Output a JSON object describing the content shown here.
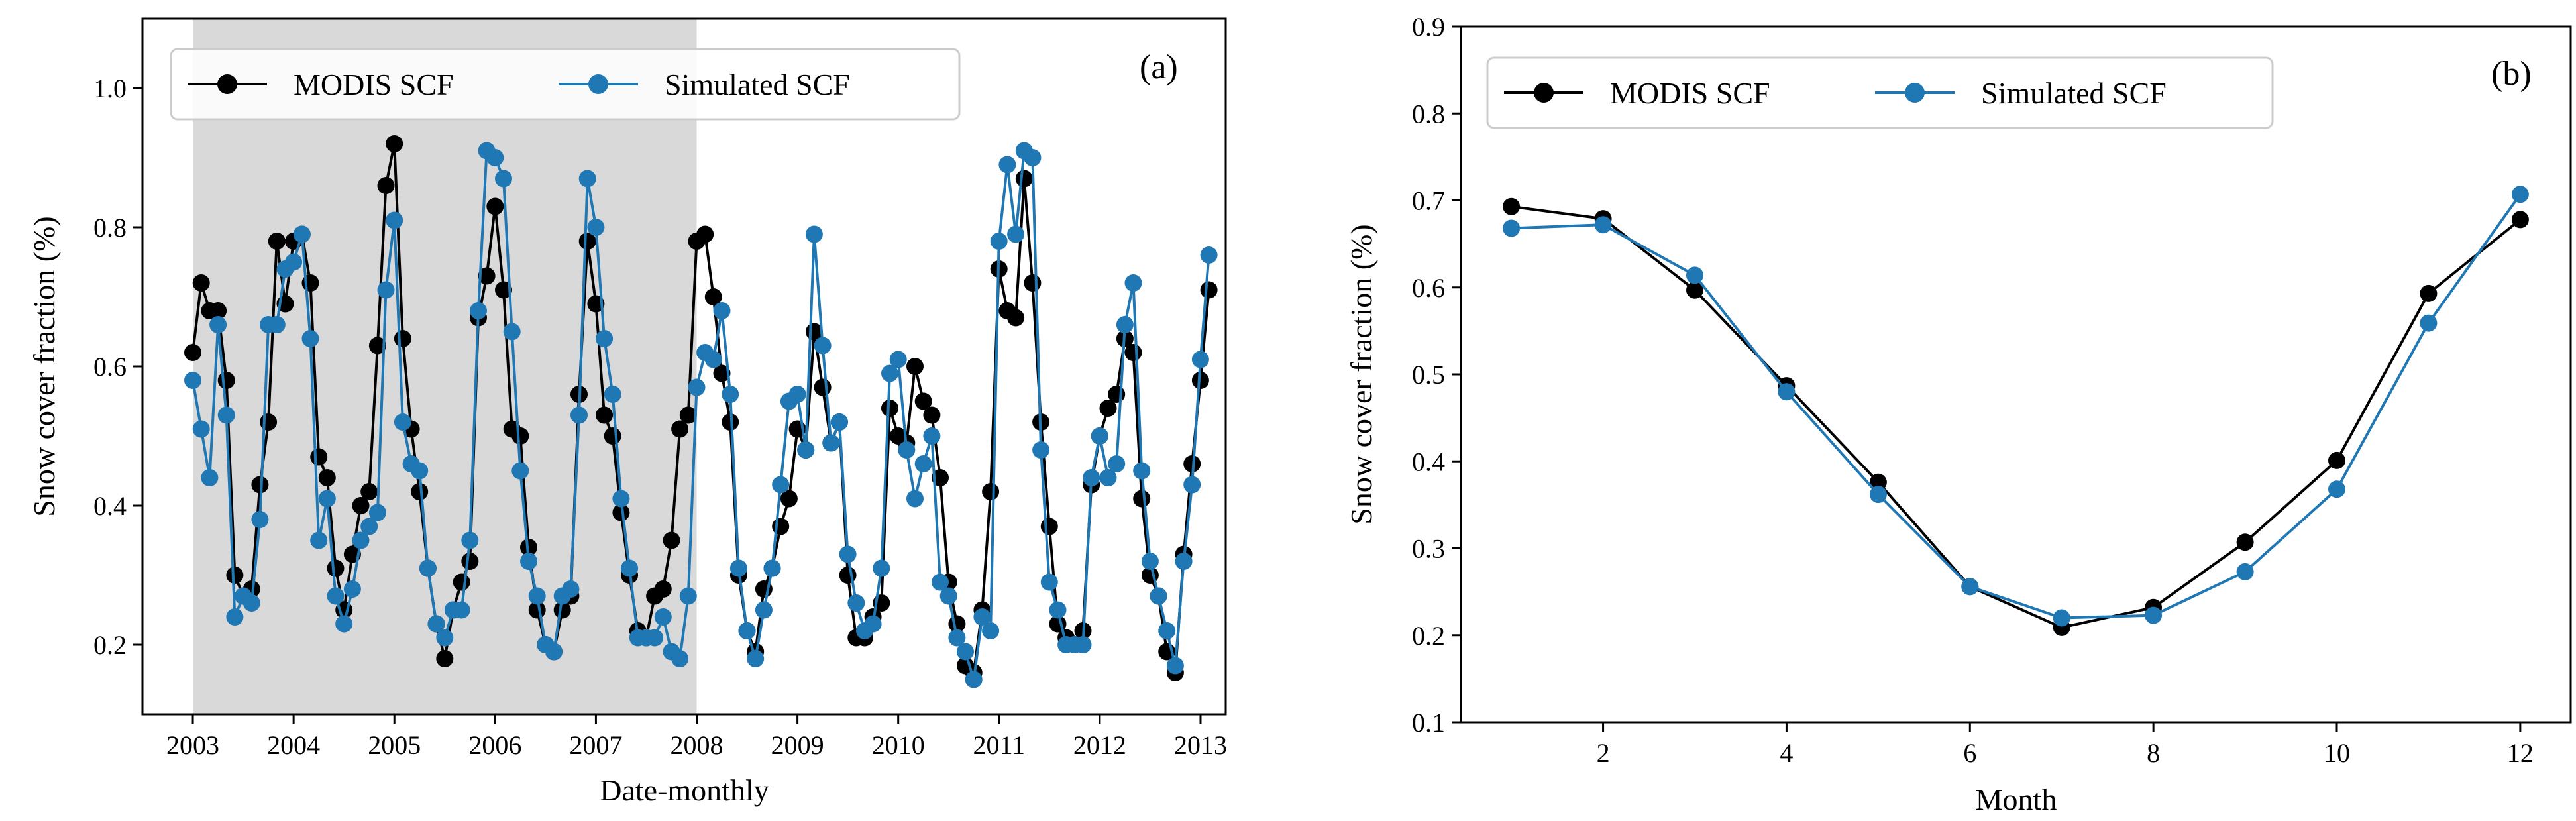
{
  "colors": {
    "modis": "#000000",
    "simulated": "#1f77b4",
    "shade": "#d9d9d9",
    "legend_border": "#cccccc"
  },
  "chart_data": [
    {
      "type": "line",
      "panel_label": "(a)",
      "xlabel": "Date-monthly",
      "ylabel": "Snow cover fraction (%)",
      "xlim": [
        2002.5,
        2013.25
      ],
      "ylim": [
        0.1,
        1.1
      ],
      "x_ticks": [
        2003,
        2004,
        2005,
        2006,
        2007,
        2008,
        2009,
        2010,
        2011,
        2012,
        2013
      ],
      "x_tick_labels": [
        "2003",
        "2004",
        "2005",
        "2006",
        "2007",
        "2008",
        "2009",
        "2010",
        "2011",
        "2012",
        "2013"
      ],
      "y_ticks": [
        0.2,
        0.4,
        0.6,
        0.8,
        1.0
      ],
      "y_tick_labels": [
        "0.2",
        "0.4",
        "0.6",
        "0.8",
        "1.0"
      ],
      "shaded_range": [
        2003,
        2008
      ],
      "legend": {
        "placement": "top-left",
        "ncol": 2
      },
      "x_start": 2003,
      "x_step": 0.08333,
      "series": [
        {
          "name": "MODIS SCF",
          "color_key": "modis",
          "values": [
            0.62,
            0.72,
            0.68,
            0.68,
            0.58,
            0.3,
            0.27,
            0.28,
            0.43,
            0.52,
            0.78,
            0.69,
            0.78,
            0.79,
            0.72,
            0.47,
            0.44,
            0.31,
            0.25,
            0.33,
            0.4,
            0.42,
            0.63,
            0.86,
            0.92,
            0.64,
            0.51,
            0.42,
            0.31,
            0.23,
            0.18,
            0.25,
            0.29,
            0.32,
            0.67,
            0.73,
            0.83,
            0.71,
            0.51,
            0.5,
            0.34,
            0.25,
            0.2,
            0.19,
            0.25,
            0.27,
            0.56,
            0.78,
            0.69,
            0.53,
            0.5,
            0.39,
            0.3,
            0.22,
            0.21,
            0.27,
            0.28,
            0.35,
            0.51,
            0.53,
            0.78,
            0.79,
            0.7,
            0.59,
            0.52,
            0.3,
            0.22,
            0.19,
            0.28,
            0.31,
            0.37,
            0.41,
            0.51,
            0.48,
            0.65,
            0.57,
            0.49,
            0.52,
            0.3,
            0.21,
            0.21,
            0.24,
            0.26,
            0.54,
            0.5,
            0.49,
            0.6,
            0.55,
            0.53,
            0.44,
            0.29,
            0.23,
            0.17,
            0.16,
            0.25,
            0.42,
            0.74,
            0.68,
            0.67,
            0.87,
            0.72,
            0.52,
            0.37,
            0.23,
            0.21,
            0.2,
            0.22,
            0.43,
            0.5,
            0.54,
            0.56,
            0.64,
            0.62,
            0.41,
            0.3,
            0.27,
            0.19,
            0.16,
            0.33,
            0.46,
            0.58,
            0.71
          ]
        },
        {
          "name": "Simulated SCF",
          "color_key": "simulated",
          "values": [
            0.58,
            0.51,
            0.44,
            0.66,
            0.53,
            0.24,
            0.27,
            0.26,
            0.38,
            0.66,
            0.66,
            0.74,
            0.75,
            0.79,
            0.64,
            0.35,
            0.41,
            0.27,
            0.23,
            0.28,
            0.35,
            0.37,
            0.39,
            0.71,
            0.81,
            0.52,
            0.46,
            0.45,
            0.31,
            0.23,
            0.21,
            0.25,
            0.25,
            0.35,
            0.68,
            0.91,
            0.9,
            0.87,
            0.65,
            0.45,
            0.32,
            0.27,
            0.2,
            0.19,
            0.27,
            0.28,
            0.53,
            0.87,
            0.8,
            0.64,
            0.56,
            0.41,
            0.31,
            0.21,
            0.21,
            0.21,
            0.24,
            0.19,
            0.18,
            0.27,
            0.57,
            0.62,
            0.61,
            0.68,
            0.56,
            0.31,
            0.22,
            0.18,
            0.25,
            0.31,
            0.43,
            0.55,
            0.56,
            0.48,
            0.79,
            0.63,
            0.49,
            0.52,
            0.33,
            0.26,
            0.22,
            0.23,
            0.31,
            0.59,
            0.61,
            0.48,
            0.41,
            0.46,
            0.5,
            0.29,
            0.27,
            0.21,
            0.19,
            0.15,
            0.24,
            0.22,
            0.78,
            0.89,
            0.79,
            0.91,
            0.9,
            0.48,
            0.29,
            0.25,
            0.2,
            0.2,
            0.2,
            0.44,
            0.5,
            0.44,
            0.46,
            0.66,
            0.72,
            0.45,
            0.32,
            0.27,
            0.22,
            0.17,
            0.32,
            0.43,
            0.61,
            0.76
          ]
        }
      ]
    },
    {
      "type": "line",
      "panel_label": "(b)",
      "xlabel": "Month",
      "ylabel": "Snow cover fraction (%)",
      "xlim": [
        0.45,
        12.55
      ],
      "ylim": [
        0.1,
        0.9
      ],
      "x_ticks": [
        2,
        4,
        6,
        8,
        10,
        12
      ],
      "x_tick_labels": [
        "2",
        "4",
        "6",
        "8",
        "10",
        "12"
      ],
      "y_ticks": [
        0.1,
        0.2,
        0.3,
        0.4,
        0.5,
        0.6,
        0.7,
        0.8,
        0.9
      ],
      "y_tick_labels": [
        "0.1",
        "0.2",
        "0.3",
        "0.4",
        "0.5",
        "0.6",
        "0.7",
        "0.8",
        "0.9"
      ],
      "legend": {
        "placement": "top-left",
        "ncol": 2
      },
      "x": [
        1,
        2,
        3,
        4,
        5,
        6,
        7,
        8,
        9,
        10,
        11,
        12
      ],
      "series": [
        {
          "name": "MODIS SCF",
          "color_key": "modis",
          "values": [
            0.693,
            0.679,
            0.597,
            0.487,
            0.376,
            0.256,
            0.209,
            0.232,
            0.307,
            0.401,
            0.593,
            0.678
          ]
        },
        {
          "name": "Simulated SCF",
          "color_key": "simulated",
          "values": [
            0.668,
            0.672,
            0.614,
            0.48,
            0.362,
            0.256,
            0.22,
            0.223,
            0.273,
            0.368,
            0.559,
            0.707
          ]
        }
      ]
    }
  ]
}
